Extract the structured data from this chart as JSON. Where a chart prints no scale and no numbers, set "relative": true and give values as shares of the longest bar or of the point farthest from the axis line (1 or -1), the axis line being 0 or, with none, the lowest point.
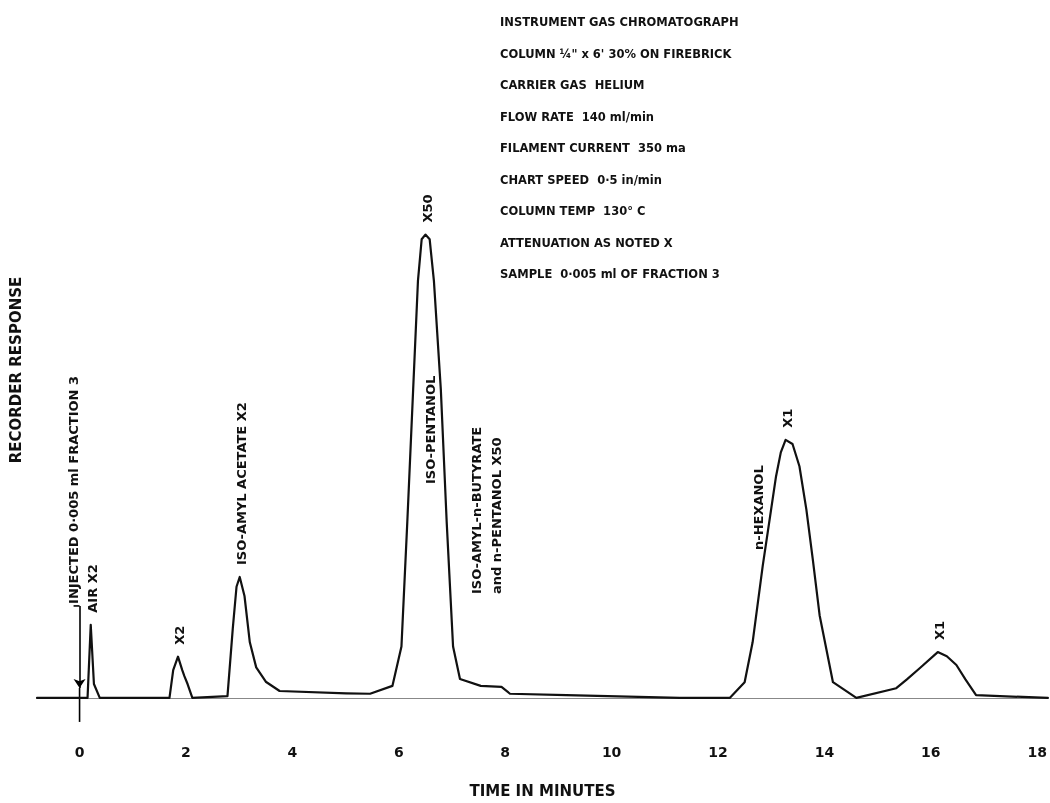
{
  "chart_data": {
    "type": "line",
    "relative": true,
    "xlabel": "TIME IN MINUTES",
    "ylabel": "RECORDER RESPONSE",
    "x": [
      -0.8,
      0,
      0.15,
      0.21,
      0.27,
      0.38,
      1.69,
      1.76,
      1.85,
      1.93,
      1.97,
      2.03,
      2.12,
      2.78,
      2.88,
      2.95,
      3.01,
      3.1,
      3.2,
      3.32,
      3.5,
      3.76,
      5.01,
      5.46,
      5.88,
      6.05,
      6.16,
      6.27,
      6.36,
      6.43,
      6.5,
      6.58,
      6.66,
      6.79,
      6.9,
      7.02,
      7.15,
      7.54,
      7.93,
      8.09,
      9.15,
      11.28,
      12.22,
      12.5,
      12.65,
      12.84,
      13.09,
      13.18,
      13.27,
      13.4,
      13.53,
      13.66,
      13.78,
      13.91,
      14.16,
      14.6,
      15.35,
      15.55,
      15.79,
      16.13,
      16.3,
      16.48,
      16.65,
      16.85,
      18.2
    ],
    "series": [
      {
        "color": "#111111",
        "values": [
          0,
          0,
          0,
          0.158,
          0.03,
          0,
          0,
          0.06,
          0.089,
          0.06,
          0.047,
          0.03,
          0,
          0.004,
          0.15,
          0.24,
          0.261,
          0.22,
          0.12,
          0.066,
          0.035,
          0.015,
          0.01,
          0.009,
          0.026,
          0.111,
          0.38,
          0.666,
          0.9,
          0.99,
          1,
          0.99,
          0.9,
          0.666,
          0.38,
          0.111,
          0.041,
          0.026,
          0.024,
          0.009,
          0.006,
          0,
          0,
          0.034,
          0.12,
          0.285,
          0.478,
          0.53,
          0.557,
          0.548,
          0.5,
          0.407,
          0.3,
          0.178,
          0.034,
          0,
          0.021,
          0.04,
          0.064,
          0.099,
          0.09,
          0.071,
          0.04,
          0.006,
          0
        ]
      }
    ],
    "xlim": [
      -0.8,
      18.2
    ],
    "xticks": [
      0,
      2,
      4,
      6,
      8,
      10,
      12,
      14,
      16,
      18
    ],
    "grid": false,
    "marker": "none",
    "line_style": "solid",
    "ref_lines": [
      {
        "axis": "x",
        "value": 0,
        "label": "INJECTED 0·005 ml FRACTION 3"
      }
    ],
    "annotations": [
      {
        "text": "AIR X2",
        "x": 0.21,
        "y": 0.158
      },
      {
        "text": "X2",
        "x": 1.85,
        "y": 0.089
      },
      {
        "text": "ISO-AMYL ACETATE X2",
        "x": 3.01,
        "y": 0.261
      },
      {
        "text": "X50",
        "x": 6.5,
        "y": 1
      },
      {
        "text": "X1",
        "x": 13.27,
        "y": 0.557
      },
      {
        "text": "X1",
        "x": 16.13,
        "y": 0.099
      },
      "ISO-PENTANOL",
      "ISO-AMYL-n-BUTYRATE\nand n-PENTANOL X50",
      "n-HEXANOL",
      "INSTRUMENT GAS CHROMATOGRAPH",
      "COLUMN ¼\" x 6' 30% ON FIREBRICK",
      "CARRIER GAS  HELIUM",
      "FLOW RATE  140 ml/min",
      "FILAMENT CURRENT  350 ma",
      "CHART SPEED  0·5 in/min",
      "COLUMN TEMP  130° C",
      "ATTENUATION AS NOTED X",
      "SAMPLE  0·005 ml OF FRACTION 3"
    ]
  }
}
